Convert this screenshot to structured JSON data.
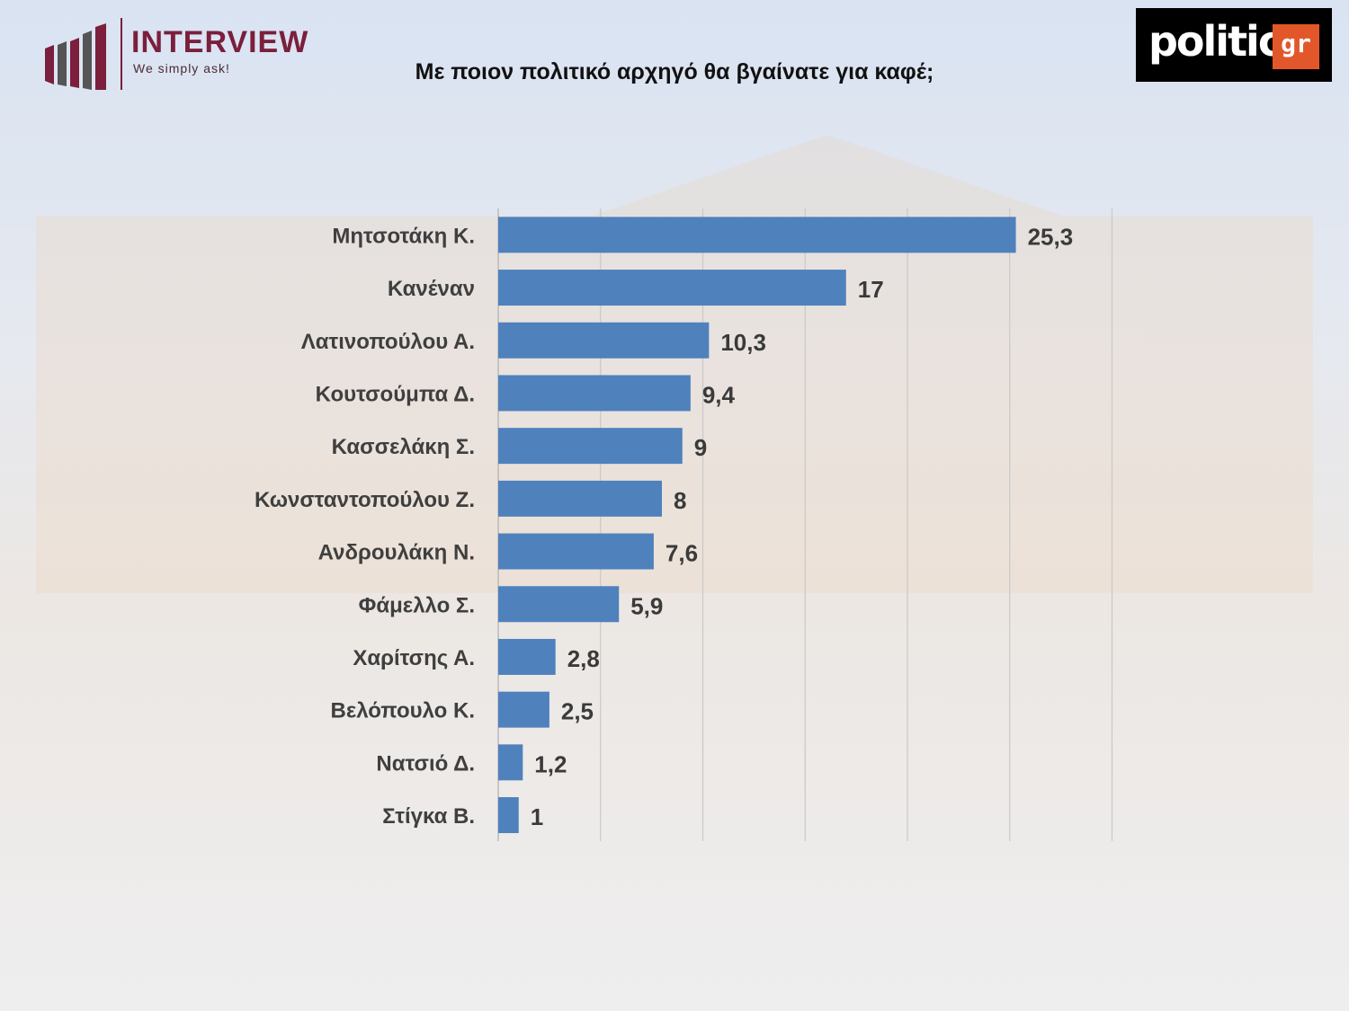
{
  "branding": {
    "interview_name": "INTERVIEW",
    "interview_tagline": "We simply ask!",
    "politic_word": "politic",
    "politic_suffix": "gr"
  },
  "colors": {
    "bar": "#4f81bd",
    "brand_interview": "#7b1f3c",
    "brand_politic_accent": "#e2572a"
  },
  "chart_data": {
    "type": "bar",
    "orientation": "horizontal",
    "title": "Με ποιον πολιτικό αρχηγό θα βγαίνατε για καφέ;",
    "categories": [
      "Μητσοτάκη Κ.",
      "Κανέναν",
      "Λατινοπούλου Α.",
      "Κουτσούμπα Δ.",
      "Κασσελάκη Σ.",
      "Κωνσταντοπούλου Ζ.",
      "Ανδρουλάκη Ν.",
      "Φάμελλο Σ.",
      "Χαρίτσης Α.",
      "Βελόπουλο Κ.",
      "Νατσιό Δ.",
      "Στίγκα Β."
    ],
    "values": [
      25.3,
      17,
      10.3,
      9.4,
      9,
      8,
      7.6,
      5.9,
      2.8,
      2.5,
      1.2,
      1
    ],
    "value_labels": [
      "25,3",
      "17",
      "10,3",
      "9,4",
      "9",
      "8",
      "7,6",
      "5,9",
      "2,8",
      "2,5",
      "1,2",
      "1"
    ],
    "xlim": [
      0,
      30
    ],
    "grid": true,
    "legend": "none"
  }
}
